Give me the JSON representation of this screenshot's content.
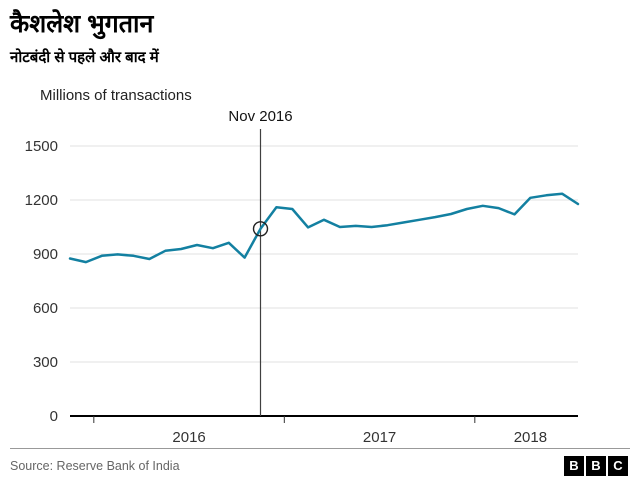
{
  "header": {
    "title": "कैशलेश भुगतान",
    "subtitle": "नोटबंदी से पहले और बाद में"
  },
  "chart_data": {
    "type": "line",
    "title": "कैशलेश भुगतान (Cashless payments)",
    "ylabel": "Millions of transactions",
    "xlabel": "",
    "ylim": [
      0,
      1500
    ],
    "yticks": [
      0,
      300,
      600,
      900,
      1200,
      1500
    ],
    "grid": "horizontal",
    "legend": "none",
    "line_color": "#1380A1",
    "x": [
      "2015-11",
      "2015-12",
      "2016-01",
      "2016-02",
      "2016-03",
      "2016-04",
      "2016-05",
      "2016-06",
      "2016-07",
      "2016-08",
      "2016-09",
      "2016-10",
      "2016-11",
      "2016-12",
      "2017-01",
      "2017-02",
      "2017-03",
      "2017-04",
      "2017-05",
      "2017-06",
      "2017-07",
      "2017-08",
      "2017-09",
      "2017-10",
      "2017-11",
      "2017-12",
      "2018-01",
      "2018-02",
      "2018-03",
      "2018-04",
      "2018-05",
      "2018-06",
      "2018-07"
    ],
    "values": [
      875,
      855,
      890,
      898,
      890,
      872,
      918,
      928,
      950,
      932,
      962,
      880,
      1040,
      1160,
      1150,
      1048,
      1090,
      1050,
      1056,
      1050,
      1060,
      1075,
      1090,
      1105,
      1122,
      1150,
      1168,
      1155,
      1120,
      1212,
      1226,
      1235,
      1178
    ],
    "annotation": {
      "label": "Nov 2016",
      "month": "2016-11",
      "index": 12,
      "value": 1040,
      "marker": "open-circle"
    },
    "year_labels": [
      {
        "label": "2016",
        "center_index": 7.5
      },
      {
        "label": "2017",
        "center_index": 19.5
      },
      {
        "label": "2018",
        "center_index": 29
      }
    ],
    "year_boundary_tick_indices": [
      1.5,
      13.5,
      25.5
    ]
  },
  "footer": {
    "source": "Source: Reserve Bank of India",
    "logo_letters": [
      "B",
      "B",
      "C"
    ]
  }
}
